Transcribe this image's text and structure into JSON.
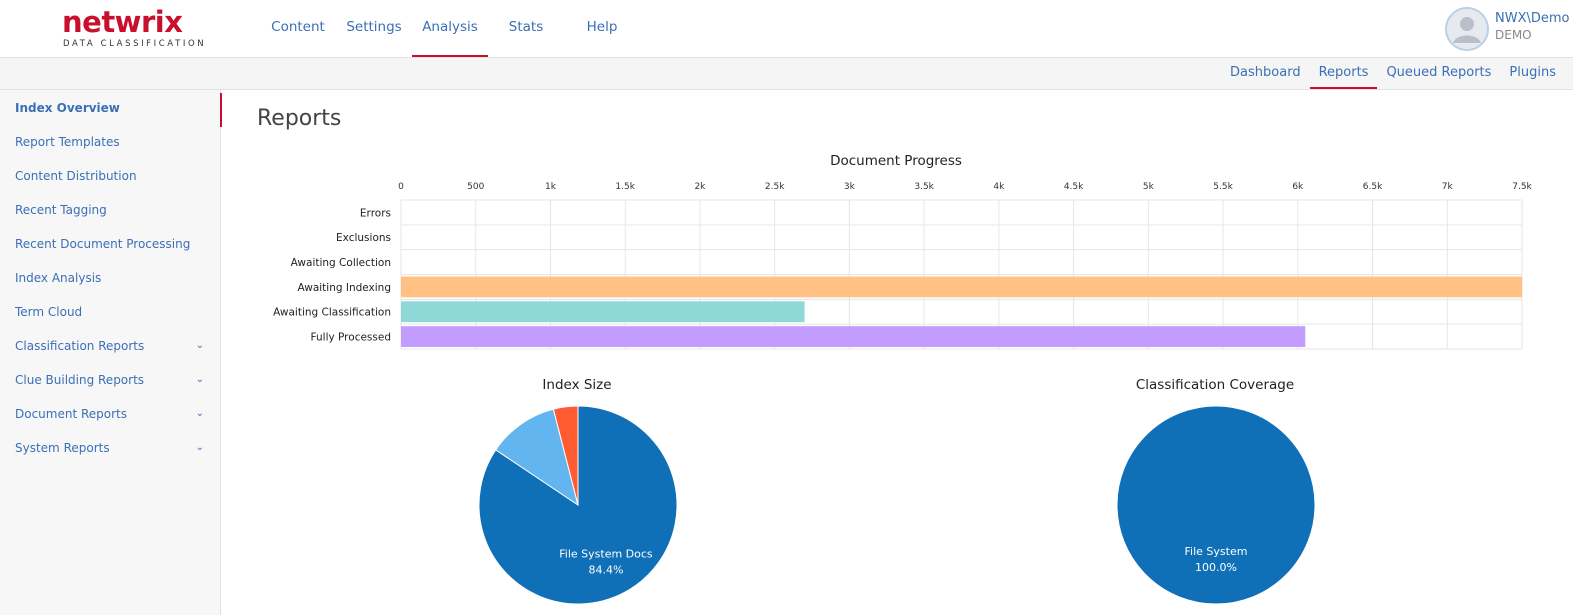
{
  "brand": {
    "name": "netwrix",
    "subtitle": "DATA CLASSIFICATION",
    "color": "#c8102e"
  },
  "main_nav": [
    {
      "label": "Content",
      "active": false
    },
    {
      "label": "Settings",
      "active": false
    },
    {
      "label": "Analysis",
      "active": true
    },
    {
      "label": "Stats",
      "active": false
    },
    {
      "label": "Help",
      "active": false
    }
  ],
  "user": {
    "name": "NWX\\Demo",
    "domain": "DEMO",
    "icon": "user-avatar-icon"
  },
  "sub_nav": [
    {
      "label": "Dashboard",
      "active": false
    },
    {
      "label": "Reports",
      "active": true
    },
    {
      "label": "Queued Reports",
      "active": false
    },
    {
      "label": "Plugins",
      "active": false
    }
  ],
  "sidebar": {
    "items": [
      {
        "label": "Index Overview",
        "active": true,
        "expandable": false
      },
      {
        "label": "Report Templates",
        "active": false,
        "expandable": false
      },
      {
        "label": "Content Distribution",
        "active": false,
        "expandable": false
      },
      {
        "label": "Recent Tagging",
        "active": false,
        "expandable": false
      },
      {
        "label": "Recent Document Processing",
        "active": false,
        "expandable": false
      },
      {
        "label": "Index Analysis",
        "active": false,
        "expandable": false
      },
      {
        "label": "Term Cloud",
        "active": false,
        "expandable": false
      },
      {
        "label": "Classification Reports",
        "active": false,
        "expandable": true
      },
      {
        "label": "Clue Building Reports",
        "active": false,
        "expandable": true
      },
      {
        "label": "Document Reports",
        "active": false,
        "expandable": true
      },
      {
        "label": "System Reports",
        "active": false,
        "expandable": true
      }
    ],
    "chevron_glyph": "⌄"
  },
  "page": {
    "title": "Reports"
  },
  "colors": {
    "accent": "#c8102e",
    "link": "#3b6fb6"
  },
  "chart_data": [
    {
      "type": "bar",
      "orientation": "horizontal",
      "title": "Document Progress",
      "categories": [
        "Errors",
        "Exclusions",
        "Awaiting Collection",
        "Awaiting Indexing",
        "Awaiting Classification",
        "Fully Processed"
      ],
      "values": [
        0,
        0,
        0,
        7500,
        2700,
        6050
      ],
      "colors": [
        "#7cb5ec",
        "#7cb5ec",
        "#7cb5ec",
        "#ffc284",
        "#8ed8d8",
        "#c39cff"
      ],
      "xlim": [
        0,
        7500
      ],
      "x_ticks": [
        0,
        500,
        1000,
        1500,
        2000,
        2500,
        3000,
        3500,
        4000,
        4500,
        5000,
        5500,
        6000,
        6500,
        7000,
        7500
      ],
      "x_tick_labels": [
        "0",
        "500",
        "1k",
        "1.5k",
        "2k",
        "2.5k",
        "3k",
        "3.5k",
        "4k",
        "4.5k",
        "5k",
        "5.5k",
        "6k",
        "6.5k",
        "7k",
        "7.5k"
      ],
      "axis_position": "top",
      "grid": true
    },
    {
      "type": "pie",
      "title": "Index Size",
      "slices": [
        {
          "label": "File System Docs",
          "value": 84.4,
          "display": "84.4%",
          "color": "#0f6fb7",
          "show_label": true
        },
        {
          "label": "",
          "value": 11.6,
          "display": "",
          "color": "#63b5ef",
          "show_label": false
        },
        {
          "label": "",
          "value": 4.0,
          "display": "",
          "color": "#ff5c33",
          "show_label": false
        }
      ]
    },
    {
      "type": "pie",
      "title": "Classification Coverage",
      "slices": [
        {
          "label": "File System",
          "value": 100.0,
          "display": "100.0%",
          "color": "#0f6fb7",
          "show_label": true
        }
      ]
    }
  ]
}
